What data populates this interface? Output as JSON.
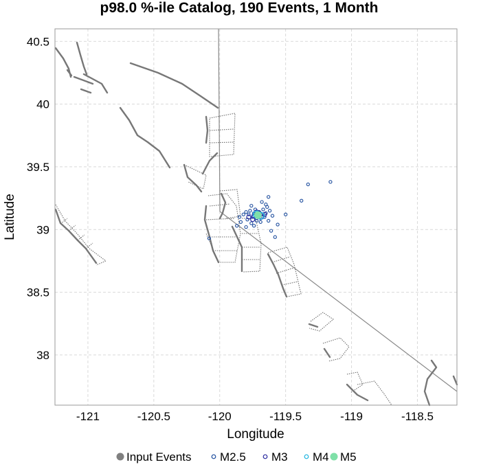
{
  "chart_data": {
    "type": "scatter",
    "title": "p98.0 %-ile Catalog, 190 Events, 1 Month",
    "xlabel": "Longitude",
    "ylabel": "Latitude",
    "xlim": [
      -121.25,
      -118.2
    ],
    "ylim": [
      37.6,
      40.6
    ],
    "xticks": [
      -121,
      -120.5,
      -120,
      -119.5,
      -119,
      -118.5
    ],
    "xtick_labels": [
      "-121",
      "-120.5",
      "-120",
      "-119.5",
      "-119",
      "-118.5"
    ],
    "yticks": [
      38,
      38.5,
      39,
      39.5,
      40,
      40.5
    ],
    "ytick_labels": [
      "38",
      "38.5",
      "39",
      "39.5",
      "40",
      "40.5"
    ],
    "grid": true,
    "legend_position": "bottom",
    "legend": [
      {
        "label": "Input Events",
        "marker": "filled",
        "color": "#808080"
      },
      {
        "label": "M2.5",
        "marker": "open",
        "color": "#1f4e9e"
      },
      {
        "label": "M3",
        "marker": "open",
        "color": "#2a2aa0"
      },
      {
        "label": "M4",
        "marker": "open",
        "color": "#1fb5e0"
      },
      {
        "label": "M5",
        "marker": "filled",
        "color": "#7fe0a8"
      }
    ],
    "series": [
      {
        "name": "M2.5",
        "color": "#1f4e9e",
        "points": [
          [
            -120.08,
            38.93
          ],
          [
            -119.87,
            39.03
          ],
          [
            -119.85,
            39.1
          ],
          [
            -119.84,
            39.06
          ],
          [
            -119.82,
            39.12
          ],
          [
            -119.8,
            39.14
          ],
          [
            -119.79,
            39.08
          ],
          [
            -119.78,
            39.12
          ],
          [
            -119.77,
            39.15
          ],
          [
            -119.76,
            39.05
          ],
          [
            -119.75,
            39.1
          ],
          [
            -119.74,
            39.13
          ],
          [
            -119.73,
            39.16
          ],
          [
            -119.72,
            39.07
          ],
          [
            -119.71,
            39.11
          ],
          [
            -119.7,
            39.14
          ],
          [
            -119.69,
            39.09
          ],
          [
            -119.68,
            39.12
          ],
          [
            -119.67,
            39.16
          ],
          [
            -119.66,
            39.1
          ],
          [
            -119.65,
            39.13
          ],
          [
            -119.64,
            39.18
          ],
          [
            -119.63,
            39.07
          ],
          [
            -119.62,
            39.15
          ],
          [
            -119.6,
            39.11
          ],
          [
            -119.61,
            38.99
          ],
          [
            -119.58,
            38.94
          ],
          [
            -119.56,
            39.04
          ],
          [
            -119.5,
            39.12
          ],
          [
            -119.68,
            39.22
          ],
          [
            -119.63,
            39.26
          ],
          [
            -119.33,
            39.36
          ],
          [
            -119.38,
            39.23
          ],
          [
            -119.16,
            39.38
          ],
          [
            -119.74,
            39.03
          ],
          [
            -119.8,
            39.02
          ],
          [
            -119.69,
            39.06
          ],
          [
            -119.76,
            39.19
          ],
          [
            -119.65,
            39.2
          ],
          [
            -119.72,
            39.09
          ]
        ]
      },
      {
        "name": "M3",
        "color": "#2a2aa0",
        "points": [
          [
            -119.78,
            39.1
          ],
          [
            -119.74,
            39.11
          ],
          [
            -119.7,
            39.13
          ],
          [
            -119.66,
            39.12
          ],
          [
            -119.72,
            39.14
          ],
          [
            -119.68,
            39.1
          ],
          [
            -119.75,
            39.08
          ]
        ]
      },
      {
        "name": "M4",
        "color": "#1fb5e0",
        "points": [
          [
            -119.72,
            39.12
          ],
          [
            -119.69,
            39.11
          ]
        ]
      },
      {
        "name": "M5",
        "color": "#7fe0a8",
        "points": [
          [
            -119.71,
            39.115
          ]
        ]
      }
    ]
  }
}
